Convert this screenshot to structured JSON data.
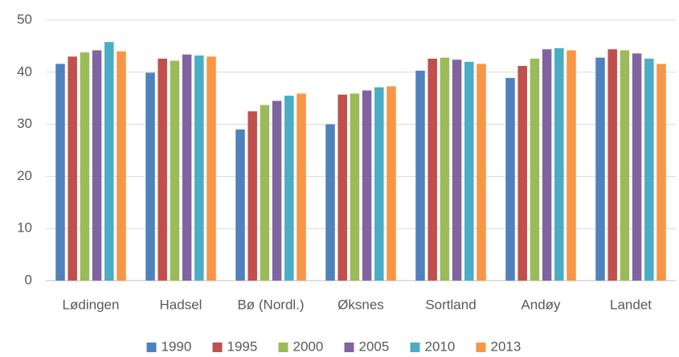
{
  "chart_data": {
    "type": "bar",
    "categories": [
      "Lødingen",
      "Hadsel",
      "Bø (Nordl.)",
      "Øksnes",
      "Sortland",
      "Andøy",
      "Landet"
    ],
    "series": [
      {
        "name": "1990",
        "color": "#4f81bd",
        "values": [
          41.6,
          39.9,
          29,
          30,
          40.3,
          38.9,
          42.8
        ]
      },
      {
        "name": "1995",
        "color": "#c0504d",
        "values": [
          43,
          42.6,
          32.5,
          35.7,
          42.6,
          41.2,
          44.4
        ]
      },
      {
        "name": "2000",
        "color": "#9bbb59",
        "values": [
          43.8,
          42.2,
          33.7,
          35.9,
          42.8,
          42.6,
          44.2
        ]
      },
      {
        "name": "2005",
        "color": "#8064a2",
        "values": [
          44.2,
          43.4,
          34.5,
          36.5,
          42.4,
          44.4,
          43.6
        ]
      },
      {
        "name": "2010",
        "color": "#4bacc6",
        "values": [
          45.8,
          43.2,
          35.5,
          37.1,
          42,
          44.6,
          42.6
        ]
      },
      {
        "name": "2013",
        "color": "#f79646",
        "values": [
          44,
          43,
          35.9,
          37.3,
          41.6,
          44.2,
          41.6
        ]
      }
    ],
    "ylim": [
      0,
      50
    ],
    "yticks": [
      0,
      10,
      20,
      30,
      40,
      50
    ],
    "grid": true,
    "legend": "bottom"
  }
}
